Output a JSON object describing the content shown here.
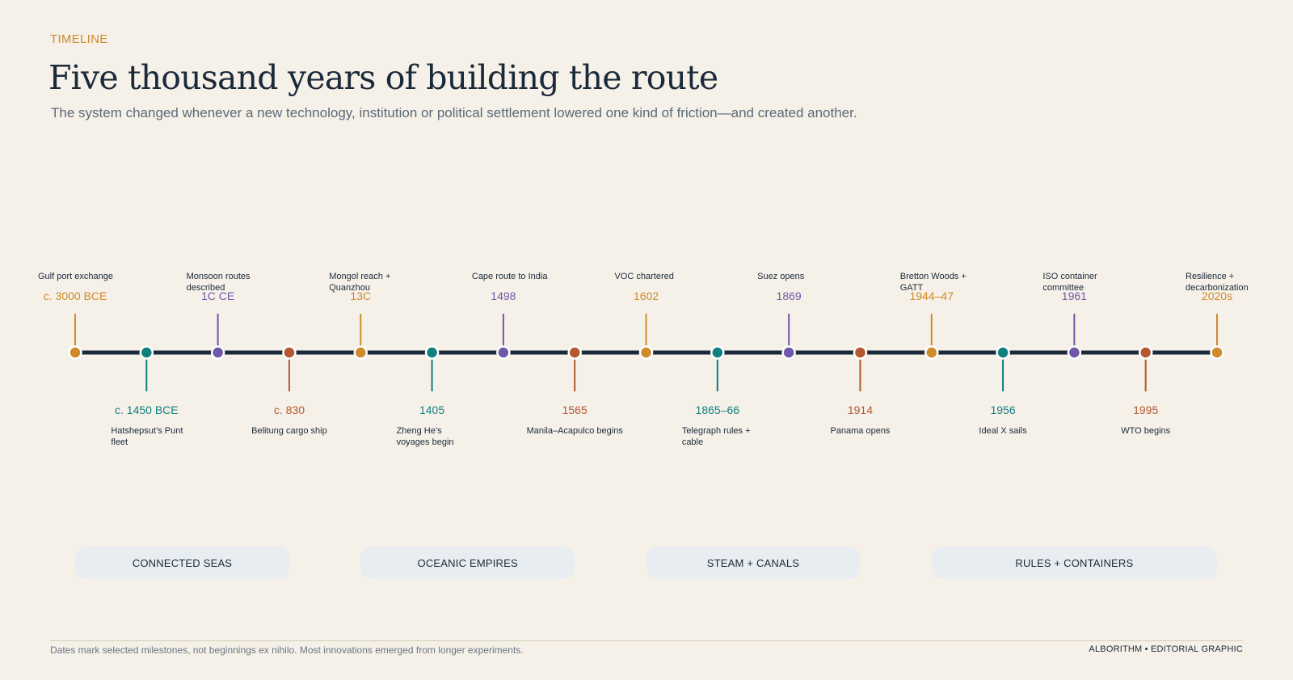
{
  "header": {
    "eyebrow": "TIMELINE",
    "title": "Five thousand years of building the route",
    "subtitle": "The system changed whenever a new technology, institution or political settlement lowered one kind of friction—and created another."
  },
  "colors": {
    "gold": "#cf8a2b",
    "teal": "#117f80",
    "purple": "#6f58a8",
    "rust": "#b5582f",
    "axis": "#1b2a3a"
  },
  "events": [
    {
      "date": "c. 3000 BCE",
      "label": "Gulf port exchange",
      "side": "top",
      "color": "gold"
    },
    {
      "date": "c. 1450 BCE",
      "label": "Hatshepsut’s Punt fleet",
      "side": "bottom",
      "color": "teal"
    },
    {
      "date": "1C CE",
      "label": "Monsoon routes described",
      "side": "top",
      "color": "purple"
    },
    {
      "date": "c. 830",
      "label": "Belitung cargo ship",
      "side": "bottom",
      "color": "rust"
    },
    {
      "date": "13C",
      "label": "Mongol reach + Quanzhou",
      "side": "top",
      "color": "gold"
    },
    {
      "date": "1405",
      "label": "Zheng He’s voyages begin",
      "side": "bottom",
      "color": "teal"
    },
    {
      "date": "1498",
      "label": "Cape route to India",
      "side": "top",
      "color": "purple"
    },
    {
      "date": "1565",
      "label": "Manila–Acapulco begins",
      "side": "bottom",
      "color": "rust"
    },
    {
      "date": "1602",
      "label": "VOC chartered",
      "side": "top",
      "color": "gold"
    },
    {
      "date": "1865–66",
      "label": "Telegraph rules + cable",
      "side": "bottom",
      "color": "teal"
    },
    {
      "date": "1869",
      "label": "Suez opens",
      "side": "top",
      "color": "purple"
    },
    {
      "date": "1914",
      "label": "Panama opens",
      "side": "bottom",
      "color": "rust"
    },
    {
      "date": "1944–47",
      "label": "Bretton Woods + GATT",
      "side": "top",
      "color": "gold"
    },
    {
      "date": "1956",
      "label": "Ideal X sails",
      "side": "bottom",
      "color": "teal"
    },
    {
      "date": "1961",
      "label": "ISO container committee",
      "side": "top",
      "color": "purple"
    },
    {
      "date": "1995",
      "label": "WTO begins",
      "side": "bottom",
      "color": "rust"
    },
    {
      "date": "2020s",
      "label": "Resilience + decarbonization",
      "side": "top",
      "color": "gold"
    }
  ],
  "eras": [
    {
      "label": "CONNECTED SEAS",
      "from": 0,
      "to": 3
    },
    {
      "label": "OCEANIC EMPIRES",
      "from": 4,
      "to": 7
    },
    {
      "label": "STEAM + CANALS",
      "from": 8,
      "to": 11
    },
    {
      "label": "RULES + CONTAINERS",
      "from": 12,
      "to": 16
    }
  ],
  "footer": {
    "note": "Dates mark selected milestones, not beginnings ex nihilo. Most innovations emerged from longer experiments.",
    "credit": "ALBORITHM • EDITORIAL GRAPHIC"
  }
}
